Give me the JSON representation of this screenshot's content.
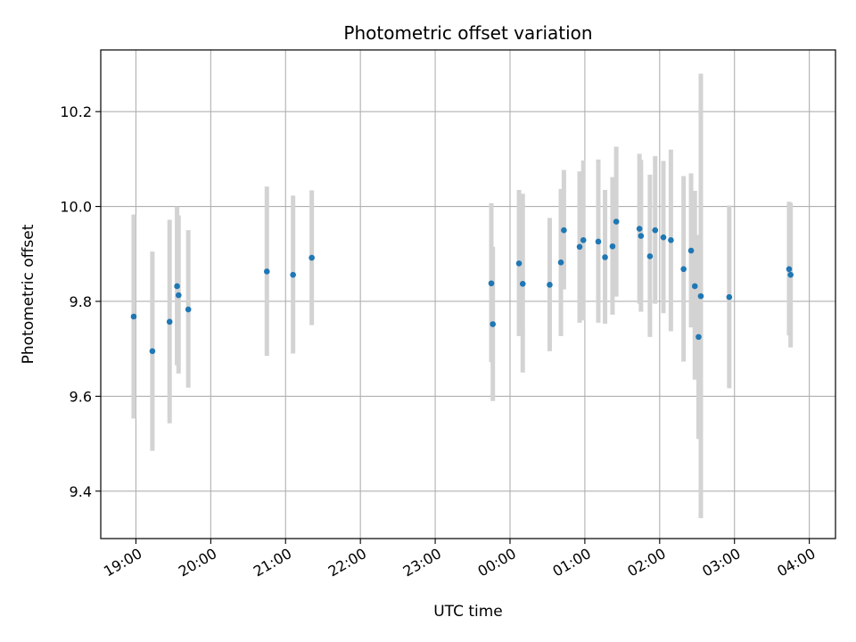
{
  "chart_data": {
    "type": "scatter",
    "title": "Photometric offset variation",
    "xlabel": "UTC time",
    "ylabel": "Photometric offset",
    "x_unit": "hour",
    "x_ticks": [
      {
        "value": 19,
        "label": "19:00"
      },
      {
        "value": 20,
        "label": "20:00"
      },
      {
        "value": 21,
        "label": "21:00"
      },
      {
        "value": 22,
        "label": "22:00"
      },
      {
        "value": 23,
        "label": "23:00"
      },
      {
        "value": 24,
        "label": "00:00"
      },
      {
        "value": 25,
        "label": "01:00"
      },
      {
        "value": 26,
        "label": "02:00"
      },
      {
        "value": 27,
        "label": "03:00"
      },
      {
        "value": 28,
        "label": "04:00"
      }
    ],
    "y_ticks": [
      {
        "value": 9.4,
        "label": "9.4"
      },
      {
        "value": 9.6,
        "label": "9.6"
      },
      {
        "value": 9.8,
        "label": "9.8"
      },
      {
        "value": 10.0,
        "label": "10.0"
      },
      {
        "value": 10.2,
        "label": "10.2"
      }
    ],
    "xlim": [
      18.53,
      28.35
    ],
    "ylim": [
      9.3,
      10.33
    ],
    "grid": true,
    "marker_color": "#1f77b4",
    "errorbar_color": "#d3d3d3",
    "series": [
      {
        "points": [
          {
            "x": 18.97,
            "y": 9.768,
            "yerr_low": 9.553,
            "yerr_high": 9.983
          },
          {
            "x": 19.22,
            "y": 9.695,
            "yerr_low": 9.485,
            "yerr_high": 9.905
          },
          {
            "x": 19.45,
            "y": 9.757,
            "yerr_low": 9.543,
            "yerr_high": 9.972
          },
          {
            "x": 19.55,
            "y": 9.832,
            "yerr_low": 9.665,
            "yerr_high": 10.0
          },
          {
            "x": 19.57,
            "y": 9.813,
            "yerr_low": 9.648,
            "yerr_high": 9.981
          },
          {
            "x": 19.7,
            "y": 9.783,
            "yerr_low": 9.618,
            "yerr_high": 9.95
          },
          {
            "x": 20.75,
            "y": 9.863,
            "yerr_low": 9.685,
            "yerr_high": 10.042
          },
          {
            "x": 21.1,
            "y": 9.856,
            "yerr_low": 9.69,
            "yerr_high": 10.023
          },
          {
            "x": 21.35,
            "y": 9.892,
            "yerr_low": 9.75,
            "yerr_high": 10.034
          },
          {
            "x": 23.75,
            "y": 9.838,
            "yerr_low": 9.672,
            "yerr_high": 10.007
          },
          {
            "x": 23.77,
            "y": 9.752,
            "yerr_low": 9.59,
            "yerr_high": 9.915
          },
          {
            "x": 24.12,
            "y": 9.88,
            "yerr_low": 9.727,
            "yerr_high": 10.035
          },
          {
            "x": 24.17,
            "y": 9.837,
            "yerr_low": 9.65,
            "yerr_high": 10.027
          },
          {
            "x": 24.53,
            "y": 9.835,
            "yerr_low": 9.695,
            "yerr_high": 9.976
          },
          {
            "x": 24.68,
            "y": 9.882,
            "yerr_low": 9.727,
            "yerr_high": 10.037
          },
          {
            "x": 24.72,
            "y": 9.95,
            "yerr_low": 9.825,
            "yerr_high": 10.077
          },
          {
            "x": 24.93,
            "y": 9.915,
            "yerr_low": 9.755,
            "yerr_high": 10.074
          },
          {
            "x": 24.98,
            "y": 9.929,
            "yerr_low": 9.76,
            "yerr_high": 10.097
          },
          {
            "x": 25.18,
            "y": 9.926,
            "yerr_low": 9.755,
            "yerr_high": 10.099
          },
          {
            "x": 25.27,
            "y": 9.893,
            "yerr_low": 9.753,
            "yerr_high": 10.035
          },
          {
            "x": 25.37,
            "y": 9.916,
            "yerr_low": 9.772,
            "yerr_high": 10.062
          },
          {
            "x": 25.42,
            "y": 9.968,
            "yerr_low": 9.81,
            "yerr_high": 10.126
          },
          {
            "x": 25.73,
            "y": 9.953,
            "yerr_low": 9.795,
            "yerr_high": 10.111
          },
          {
            "x": 25.75,
            "y": 9.938,
            "yerr_low": 9.778,
            "yerr_high": 10.098
          },
          {
            "x": 25.87,
            "y": 9.895,
            "yerr_low": 9.725,
            "yerr_high": 10.067
          },
          {
            "x": 25.94,
            "y": 9.95,
            "yerr_low": 9.795,
            "yerr_high": 10.106
          },
          {
            "x": 26.05,
            "y": 9.935,
            "yerr_low": 9.775,
            "yerr_high": 10.096
          },
          {
            "x": 26.15,
            "y": 9.929,
            "yerr_low": 9.737,
            "yerr_high": 10.12
          },
          {
            "x": 26.32,
            "y": 9.868,
            "yerr_low": 9.673,
            "yerr_high": 10.064
          },
          {
            "x": 26.42,
            "y": 9.907,
            "yerr_low": 9.745,
            "yerr_high": 10.07
          },
          {
            "x": 26.47,
            "y": 9.832,
            "yerr_low": 9.635,
            "yerr_high": 10.033
          },
          {
            "x": 26.52,
            "y": 9.725,
            "yerr_low": 9.51,
            "yerr_high": 9.94
          },
          {
            "x": 26.55,
            "y": 9.811,
            "yerr_low": 9.343,
            "yerr_high": 10.28
          },
          {
            "x": 26.93,
            "y": 9.809,
            "yerr_low": 9.617,
            "yerr_high": 10.002
          },
          {
            "x": 27.73,
            "y": 9.868,
            "yerr_low": 9.728,
            "yerr_high": 10.01
          },
          {
            "x": 27.75,
            "y": 9.856,
            "yerr_low": 9.703,
            "yerr_high": 10.008
          }
        ]
      }
    ]
  }
}
